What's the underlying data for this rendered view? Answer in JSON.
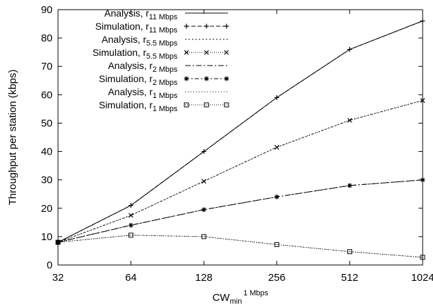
{
  "chart_data": {
    "type": "line",
    "x_scale": "log2",
    "xlabel": {
      "base": "CW",
      "sub": "min",
      "sup": "1 Mbps"
    },
    "ylabel": "Throughput per station (kbps)",
    "x": [
      32,
      64,
      128,
      256,
      512,
      1024
    ],
    "x_tick_labels": [
      "32",
      "64",
      "128",
      "256",
      "512",
      "1024"
    ],
    "xlim": [
      32,
      1024
    ],
    "ylim": [
      0,
      90
    ],
    "y_ticks": [
      0,
      10,
      20,
      30,
      40,
      50,
      60,
      70,
      80,
      90
    ],
    "grid": false,
    "legend_position": "top-left",
    "series": [
      {
        "key": "a11",
        "label_prefix": "Analysis, r",
        "label_sub": "11 Mbps",
        "dash": "",
        "marker": "none",
        "values": [
          8,
          21,
          40,
          59,
          76,
          86
        ]
      },
      {
        "key": "s11",
        "label_prefix": "Simulation, r",
        "label_sub": "11 Mbps",
        "dash": "6,3",
        "marker": "plus",
        "values": [
          8,
          21,
          40,
          59,
          76,
          86
        ]
      },
      {
        "key": "a55",
        "label_prefix": "Analysis, r",
        "label_sub": "5.5 Mbps",
        "dash": "2,3",
        "marker": "none",
        "values": [
          8,
          17.5,
          29.5,
          41.5,
          51,
          58
        ]
      },
      {
        "key": "s55",
        "label_prefix": "Simulation, r",
        "label_sub": "5.5 Mbps",
        "dash": "1,2",
        "marker": "x",
        "values": [
          8,
          17.5,
          29.5,
          41.5,
          51,
          58
        ]
      },
      {
        "key": "a2",
        "label_prefix": "Analysis, r",
        "label_sub": "2 Mbps",
        "dash": "8,3,2,3",
        "marker": "none",
        "values": [
          8,
          14,
          19.5,
          24,
          28,
          30
        ]
      },
      {
        "key": "s2",
        "label_prefix": "Simulation, r",
        "label_sub": "2 Mbps",
        "dash": "6,3,2,3",
        "marker": "star",
        "values": [
          8,
          14,
          19.5,
          24,
          28,
          30
        ]
      },
      {
        "key": "a1",
        "label_prefix": "Analysis, r",
        "label_sub": "1 Mbps",
        "dash": "1,3",
        "marker": "none",
        "values": [
          8,
          10.5,
          10,
          7.2,
          4.7,
          2.7
        ]
      },
      {
        "key": "s1",
        "label_prefix": "Simulation, r",
        "label_sub": "1 Mbps",
        "dash": "1,2",
        "marker": "square",
        "values": [
          8,
          10.5,
          10,
          7.2,
          4.7,
          2.7
        ]
      }
    ]
  }
}
